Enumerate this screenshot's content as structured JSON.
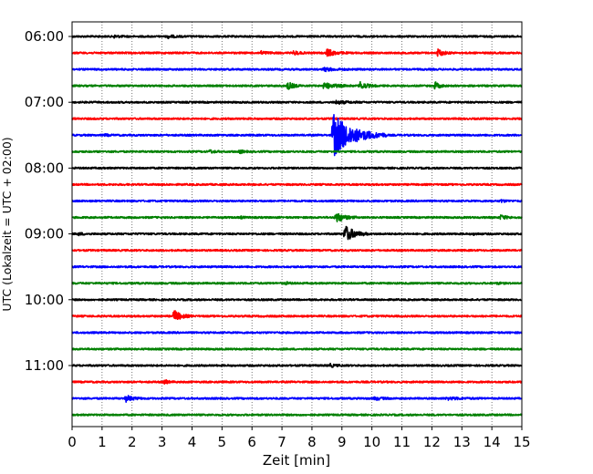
{
  "chart_data": {
    "type": "line",
    "title": "",
    "xlabel": "Zeit  [min]",
    "ylabel": "UTC (Lokalzeit = UTC + 02:00)",
    "xlim": [
      0,
      15
    ],
    "x_ticks": [
      "0",
      "1",
      "2",
      "3",
      "4",
      "5",
      "6",
      "7",
      "8",
      "9",
      "10",
      "11",
      "12",
      "13",
      "14",
      "15"
    ],
    "y_ticks": [
      {
        "trace_index": 0,
        "label": "06:00"
      },
      {
        "trace_index": 4,
        "label": "07:00"
      },
      {
        "trace_index": 8,
        "label": "08:00"
      },
      {
        "trace_index": 12,
        "label": "09:00"
      },
      {
        "trace_index": 16,
        "label": "10:00"
      },
      {
        "trace_index": 20,
        "label": "11:00"
      }
    ],
    "grid": "vertical dotted at each minute",
    "trace_colors": [
      "#000000",
      "#ff0000",
      "#0000ff",
      "#008000"
    ],
    "traces": [
      {
        "start": "06:00",
        "events": [
          {
            "t": 1.4,
            "amp": 0.15,
            "dur": 0.5
          },
          {
            "t": 3.2,
            "amp": 0.2,
            "dur": 0.5
          }
        ]
      },
      {
        "start": "06:15",
        "events": [
          {
            "t": 6.3,
            "amp": 0.2,
            "dur": 0.6
          },
          {
            "t": 7.4,
            "amp": 0.25,
            "dur": 0.5
          },
          {
            "t": 8.5,
            "amp": 0.5,
            "dur": 0.7
          },
          {
            "t": 12.2,
            "amp": 0.5,
            "dur": 0.5
          }
        ]
      },
      {
        "start": "06:30",
        "events": [
          {
            "t": 8.4,
            "amp": 0.2,
            "dur": 1.0
          }
        ]
      },
      {
        "start": "06:45",
        "events": [
          {
            "t": 7.2,
            "amp": 0.5,
            "dur": 0.5
          },
          {
            "t": 8.4,
            "amp": 0.4,
            "dur": 1.0
          },
          {
            "t": 9.6,
            "amp": 0.5,
            "dur": 0.6
          },
          {
            "t": 12.1,
            "amp": 0.5,
            "dur": 0.4
          }
        ]
      },
      {
        "start": "07:00",
        "events": [
          {
            "t": 8.8,
            "amp": 0.2,
            "dur": 1.0
          }
        ]
      },
      {
        "start": "07:15",
        "events": []
      },
      {
        "start": "07:30",
        "events": [
          {
            "t": 1.1,
            "amp": 0.1,
            "dur": 0.4
          },
          {
            "t": 8.7,
            "amp": 3.0,
            "dur": 1.8
          }
        ]
      },
      {
        "start": "07:45",
        "events": [
          {
            "t": 4.6,
            "amp": 0.2,
            "dur": 0.4
          },
          {
            "t": 5.6,
            "amp": 0.2,
            "dur": 0.3
          }
        ]
      },
      {
        "start": "08:00",
        "events": []
      },
      {
        "start": "08:15",
        "events": []
      },
      {
        "start": "08:30",
        "events": [
          {
            "t": 14.3,
            "amp": 0.15,
            "dur": 0.4
          }
        ]
      },
      {
        "start": "08:45",
        "events": [
          {
            "t": 5.6,
            "amp": 0.15,
            "dur": 0.3
          },
          {
            "t": 8.8,
            "amp": 0.7,
            "dur": 0.7
          },
          {
            "t": 14.3,
            "amp": 0.3,
            "dur": 0.5
          }
        ]
      },
      {
        "start": "09:00",
        "events": [
          {
            "t": 0.2,
            "amp": 0.15,
            "dur": 0.5
          },
          {
            "t": 9.1,
            "amp": 1.2,
            "dur": 0.8
          },
          {
            "t": 13.4,
            "amp": 0.1,
            "dur": 0.3
          }
        ]
      },
      {
        "start": "09:15",
        "events": []
      },
      {
        "start": "09:30",
        "events": []
      },
      {
        "start": "09:45",
        "events": [
          {
            "t": 7.1,
            "amp": 0.15,
            "dur": 0.4
          },
          {
            "t": 14.2,
            "amp": 0.1,
            "dur": 0.3
          }
        ]
      },
      {
        "start": "10:00",
        "events": []
      },
      {
        "start": "10:15",
        "events": [
          {
            "t": 3.4,
            "amp": 0.8,
            "dur": 0.6
          }
        ]
      },
      {
        "start": "10:30",
        "events": []
      },
      {
        "start": "10:45",
        "events": []
      },
      {
        "start": "11:00",
        "events": [
          {
            "t": 8.6,
            "amp": 0.2,
            "dur": 0.5
          }
        ]
      },
      {
        "start": "11:15",
        "events": [
          {
            "t": 3.1,
            "amp": 0.3,
            "dur": 0.3
          }
        ]
      },
      {
        "start": "11:30",
        "events": [
          {
            "t": 1.8,
            "amp": 0.4,
            "dur": 0.6
          },
          {
            "t": 10.1,
            "amp": 0.2,
            "dur": 0.6
          },
          {
            "t": 12.5,
            "amp": 0.15,
            "dur": 1.2
          }
        ]
      },
      {
        "start": "11:45",
        "events": []
      }
    ]
  }
}
